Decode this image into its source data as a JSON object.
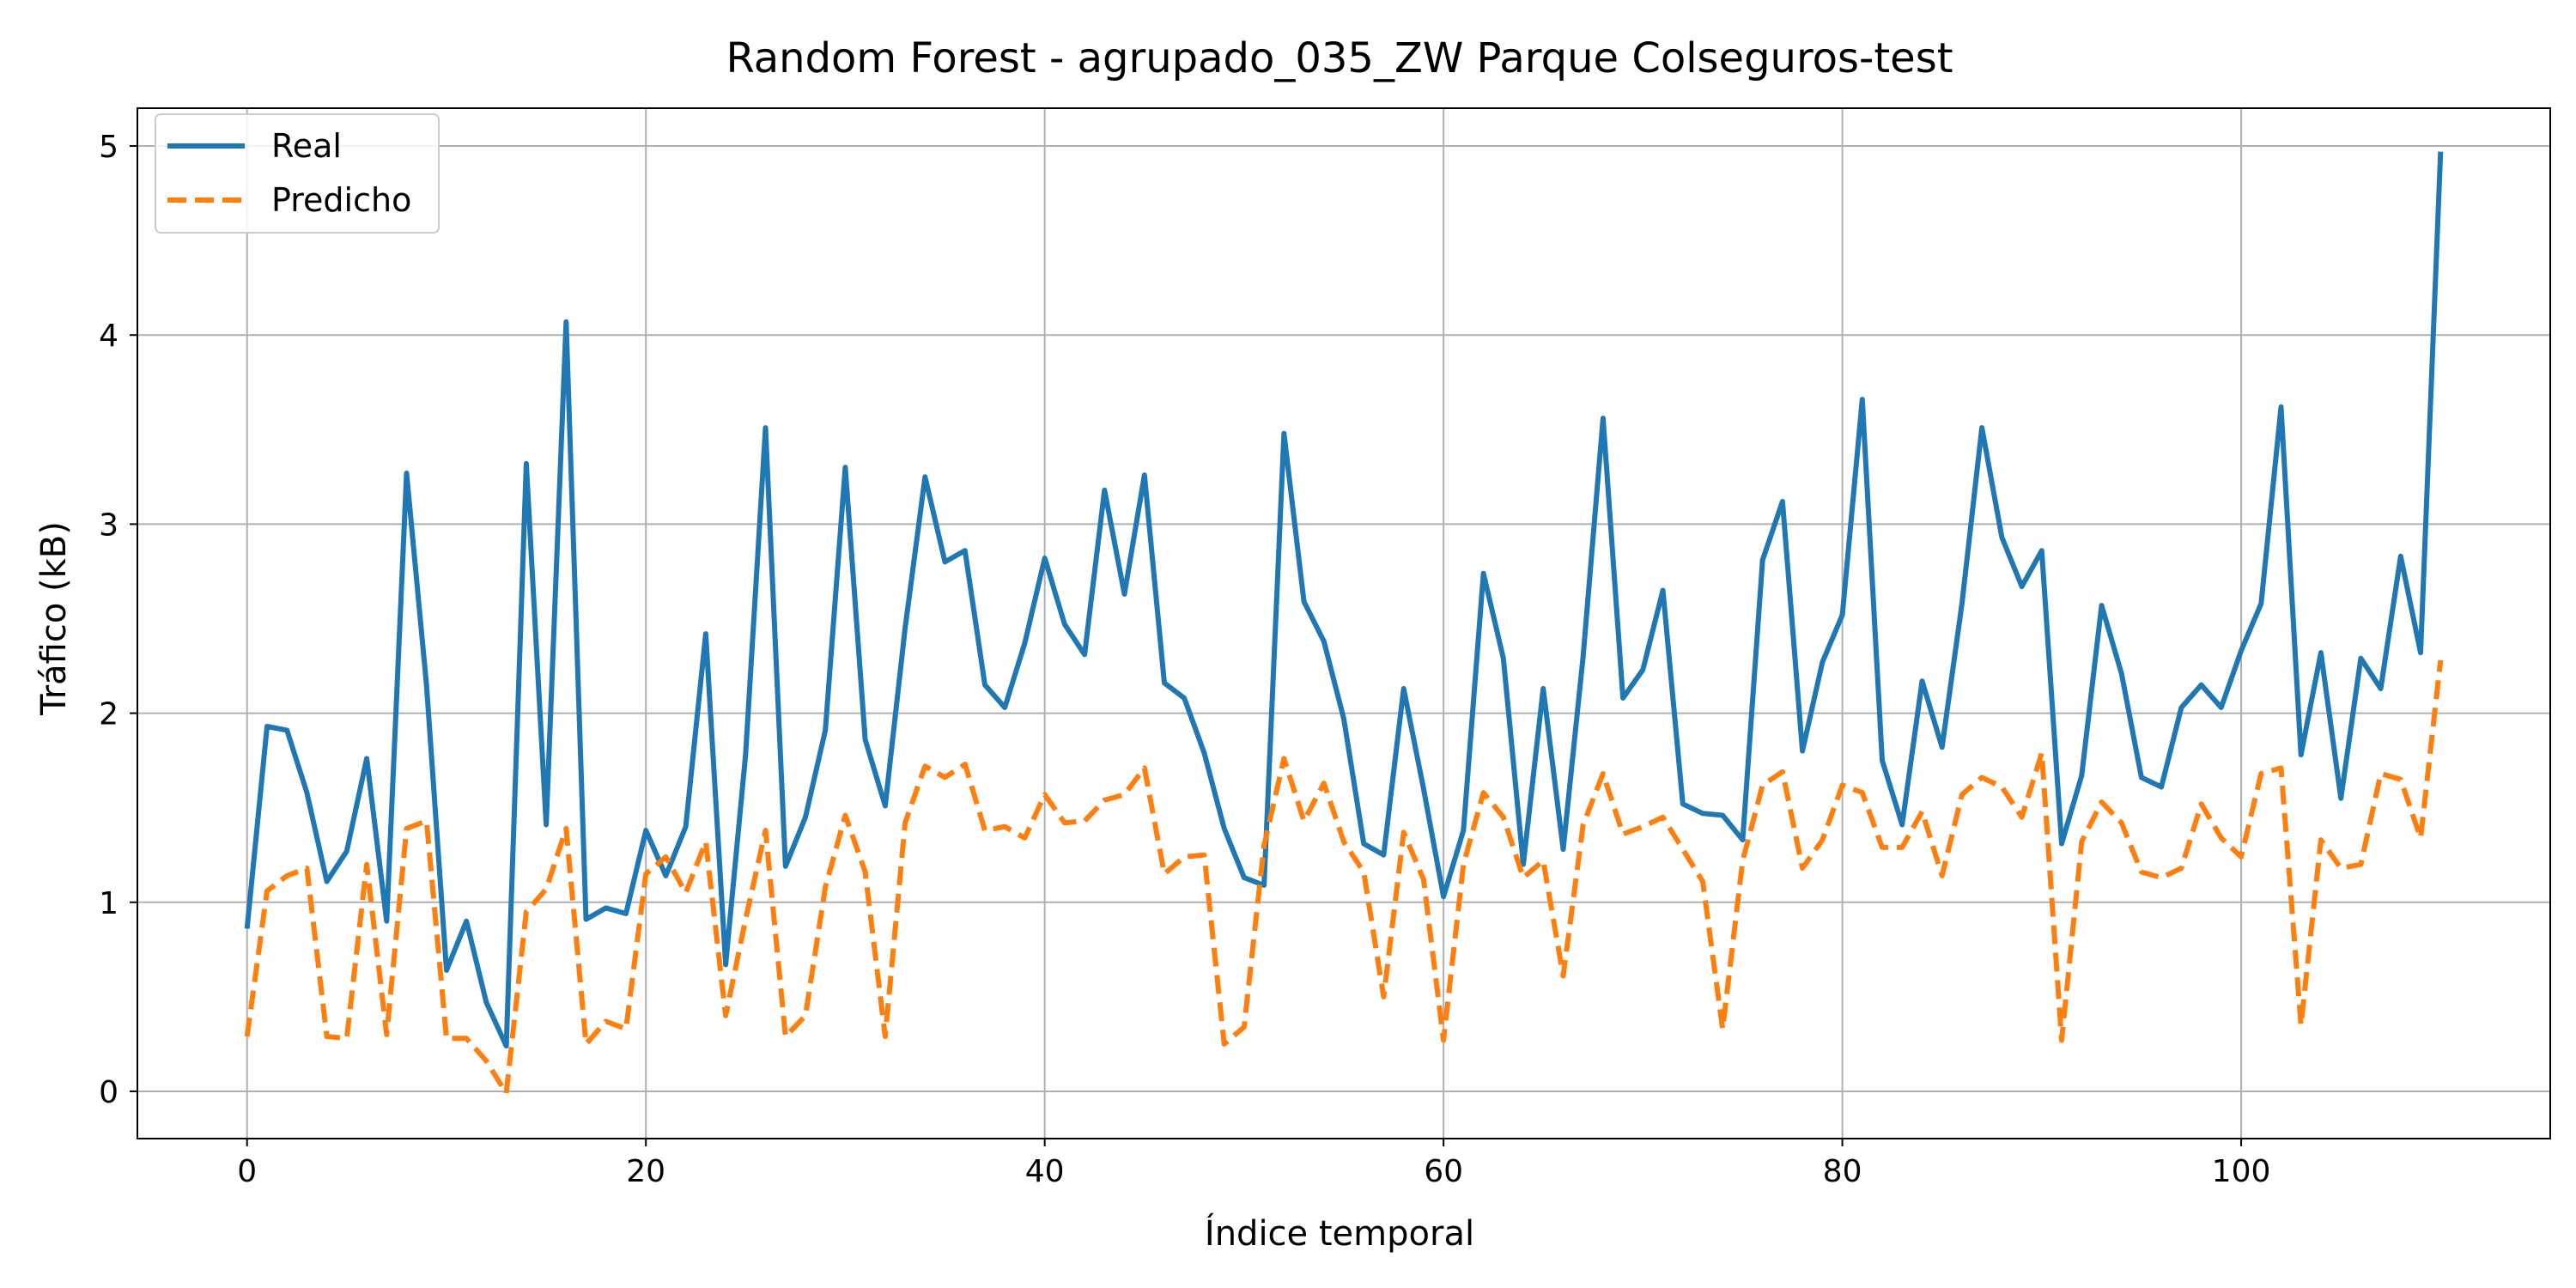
{
  "chart_data": {
    "type": "line",
    "title": "Random Forest - agrupado_035_ZW Parque Colseguros-test",
    "xlabel": "Índice temporal",
    "ylabel": "Tráfico (kB)",
    "xlim": [
      -5.5,
      115.5
    ],
    "ylim": [
      -0.25,
      5.2
    ],
    "xticks": [
      0,
      20,
      40,
      60,
      80,
      100
    ],
    "yticks": [
      0,
      1,
      2,
      3,
      4,
      5
    ],
    "grid": true,
    "legend_position": "top-left",
    "series": [
      {
        "name": "Real",
        "color": "#1f77b4",
        "style": "solid",
        "values": [
          0.86,
          1.93,
          1.91,
          1.58,
          1.11,
          1.27,
          1.76,
          0.9,
          3.27,
          2.15,
          0.64,
          0.9,
          0.47,
          0.24,
          3.32,
          1.41,
          4.07,
          0.91,
          0.97,
          0.94,
          1.38,
          1.14,
          1.4,
          2.42,
          0.67,
          1.78,
          3.51,
          1.19,
          1.45,
          1.91,
          3.3,
          1.86,
          1.51,
          2.45,
          3.25,
          2.8,
          2.86,
          2.15,
          2.03,
          2.37,
          2.82,
          2.47,
          2.31,
          3.18,
          2.63,
          3.26,
          2.16,
          2.08,
          1.79,
          1.39,
          1.13,
          1.09,
          3.48,
          2.59,
          2.38,
          1.97,
          1.31,
          1.25,
          2.13,
          1.6,
          1.03,
          1.38,
          2.74,
          2.29,
          1.2,
          2.13,
          1.28,
          2.3,
          3.56,
          2.08,
          2.23,
          2.65,
          1.52,
          1.47,
          1.46,
          1.33,
          2.81,
          3.12,
          1.8,
          2.27,
          2.52,
          3.66,
          1.75,
          1.41,
          2.17,
          1.82,
          2.58,
          3.51,
          2.93,
          2.67,
          2.86,
          1.31,
          1.67,
          2.57,
          2.21,
          1.66,
          1.61,
          2.03,
          2.15,
          2.03,
          2.33,
          2.58,
          3.62,
          1.78,
          2.32,
          1.55,
          2.29,
          2.13,
          2.83,
          2.32,
          4.97
        ]
      },
      {
        "name": "Predicho",
        "color": "#ff7f0e",
        "style": "dashed",
        "values": [
          0.29,
          1.06,
          1.14,
          1.18,
          0.29,
          0.28,
          1.2,
          0.3,
          1.39,
          1.43,
          0.28,
          0.28,
          0.16,
          -0.01,
          0.95,
          1.07,
          1.39,
          0.25,
          0.37,
          0.33,
          1.15,
          1.24,
          1.05,
          1.32,
          0.4,
          0.91,
          1.38,
          0.29,
          0.4,
          1.08,
          1.46,
          1.16,
          0.29,
          1.42,
          1.72,
          1.66,
          1.73,
          1.38,
          1.4,
          1.34,
          1.57,
          1.42,
          1.43,
          1.54,
          1.57,
          1.71,
          1.15,
          1.24,
          1.25,
          0.25,
          0.34,
          1.3,
          1.76,
          1.43,
          1.63,
          1.32,
          1.16,
          0.5,
          1.37,
          1.12,
          0.27,
          1.2,
          1.58,
          1.45,
          1.13,
          1.22,
          0.61,
          1.41,
          1.68,
          1.36,
          1.4,
          1.45,
          1.28,
          1.11,
          0.33,
          1.22,
          1.62,
          1.69,
          1.18,
          1.33,
          1.62,
          1.58,
          1.29,
          1.29,
          1.48,
          1.14,
          1.57,
          1.66,
          1.61,
          1.45,
          1.79,
          0.27,
          1.32,
          1.53,
          1.42,
          1.16,
          1.13,
          1.18,
          1.52,
          1.34,
          1.24,
          1.68,
          1.71,
          0.35,
          1.33,
          1.18,
          1.2,
          1.68,
          1.65,
          1.34,
          2.28
        ]
      }
    ]
  }
}
